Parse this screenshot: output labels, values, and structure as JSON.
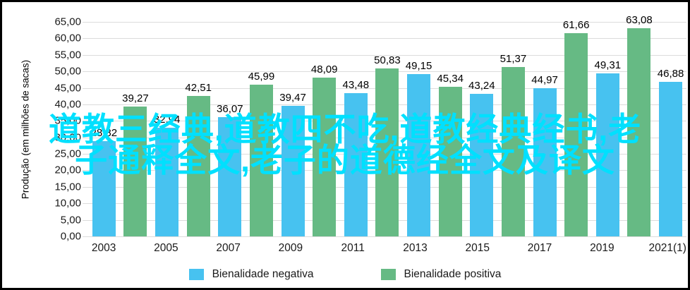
{
  "chart_data": {
    "type": "bar",
    "title": "",
    "xlabel": "",
    "ylabel": "Produção (em milhões de sacas)",
    "ylim": [
      0,
      65
    ],
    "ytick_labels": [
      "65,00",
      "60,00",
      "55,00",
      "50,00",
      "45,00",
      "40,00",
      "35,00",
      "30,00",
      "25,00",
      "20,00",
      "15,00",
      "10,00",
      "5,00",
      "0,00"
    ],
    "grid": true,
    "legend_position": "bottom",
    "x_tick_labels": [
      "2003",
      "2005",
      "2007",
      "2009",
      "2011",
      "2013",
      "2015",
      "2017",
      "2019",
      "2021(1)"
    ],
    "series": [
      {
        "name": "Bienalidade negativa",
        "color": "#47c2f0"
      },
      {
        "name": "Bienalidade positiva",
        "color": "#66ba84"
      }
    ],
    "bars": [
      {
        "value": 28.82,
        "label": "28,82",
        "series": "Bienalidade negativa"
      },
      {
        "value": 39.27,
        "label": "39,27",
        "series": "Bienalidade positiva"
      },
      {
        "value": 32.94,
        "label": "32,94",
        "series": "Bienalidade negativa"
      },
      {
        "value": 42.51,
        "label": "42,51",
        "series": "Bienalidade positiva"
      },
      {
        "value": 36.07,
        "label": "36,07",
        "series": "Bienalidade negativa"
      },
      {
        "value": 45.99,
        "label": "45,99",
        "series": "Bienalidade positiva"
      },
      {
        "value": 39.47,
        "label": "39,47",
        "series": "Bienalidade negativa"
      },
      {
        "value": 48.09,
        "label": "48,09",
        "series": "Bienalidade positiva"
      },
      {
        "value": 43.48,
        "label": "43,48",
        "series": "Bienalidade negativa"
      },
      {
        "value": 50.83,
        "label": "50,83",
        "series": "Bienalidade positiva"
      },
      {
        "value": 49.15,
        "label": "49,15",
        "series": "Bienalidade negativa"
      },
      {
        "value": 45.34,
        "label": "45,34",
        "series": "Bienalidade positiva"
      },
      {
        "value": 43.24,
        "label": "43,24",
        "series": "Bienalidade negativa"
      },
      {
        "value": 51.37,
        "label": "51,37",
        "series": "Bienalidade positiva"
      },
      {
        "value": 44.97,
        "label": "44,97",
        "series": "Bienalidade negativa"
      },
      {
        "value": 61.66,
        "label": "61,66",
        "series": "Bienalidade positiva"
      },
      {
        "value": 49.31,
        "label": "49,31",
        "series": "Bienalidade negativa"
      },
      {
        "value": 63.08,
        "label": "63,08",
        "series": "Bienalidade positiva"
      },
      {
        "value": 46.88,
        "label": "46,88",
        "series": "Bienalidade negativa"
      }
    ]
  },
  "watermark": {
    "line1": "道教三经典,道教四不吃,道教经典经书,老",
    "line2": "子通释全文,老子的道德经全文及译文",
    "color": "#00e0fe"
  }
}
